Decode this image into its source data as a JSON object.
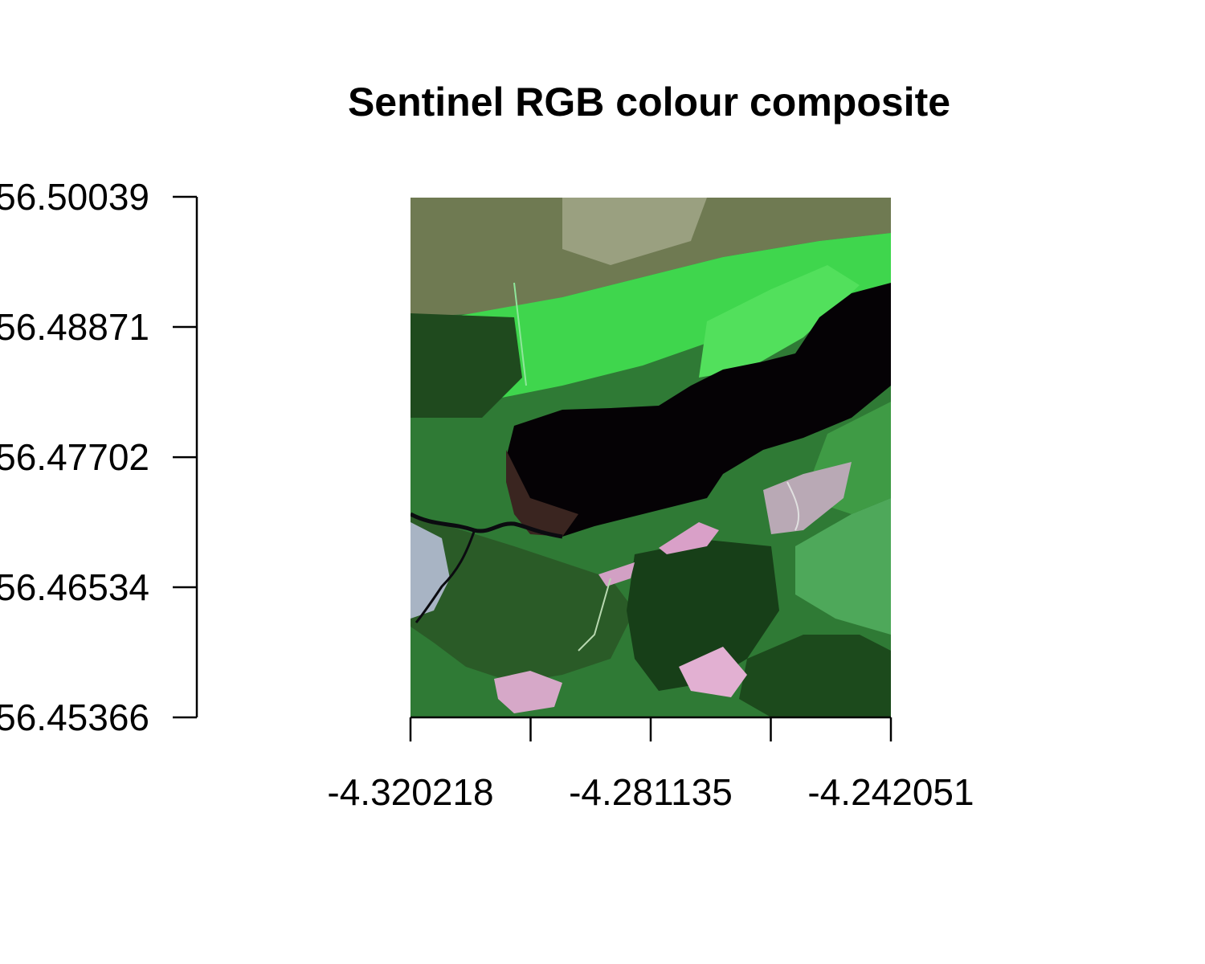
{
  "chart_data": {
    "type": "heatmap",
    "title": "Sentinel RGB colour composite",
    "xlabel": "",
    "ylabel": "",
    "x_ticks": [
      -4.320218,
      -4.300677,
      -4.281135,
      -4.261593,
      -4.242051
    ],
    "x_tick_labels": [
      "-4.320218",
      "",
      "-4.281135",
      "",
      "-4.242051"
    ],
    "y_ticks": [
      56.45366,
      56.46534,
      56.47702,
      56.48871,
      56.50039
    ],
    "y_tick_labels": [
      "56.45366",
      "56.46534",
      "56.47702",
      "56.48871",
      "56.50039"
    ],
    "xlim": [
      -4.320218,
      -4.242051
    ],
    "ylim": [
      56.45366,
      56.50039
    ],
    "grid": false,
    "legend": "none",
    "colors": {
      "water": "#050205",
      "forest": "#1f4a1e",
      "grassland": "#3fd64d",
      "moorland": "#6f7a52",
      "clearfell": "#d9a9c6",
      "settlement": "#c9d4e8"
    }
  }
}
